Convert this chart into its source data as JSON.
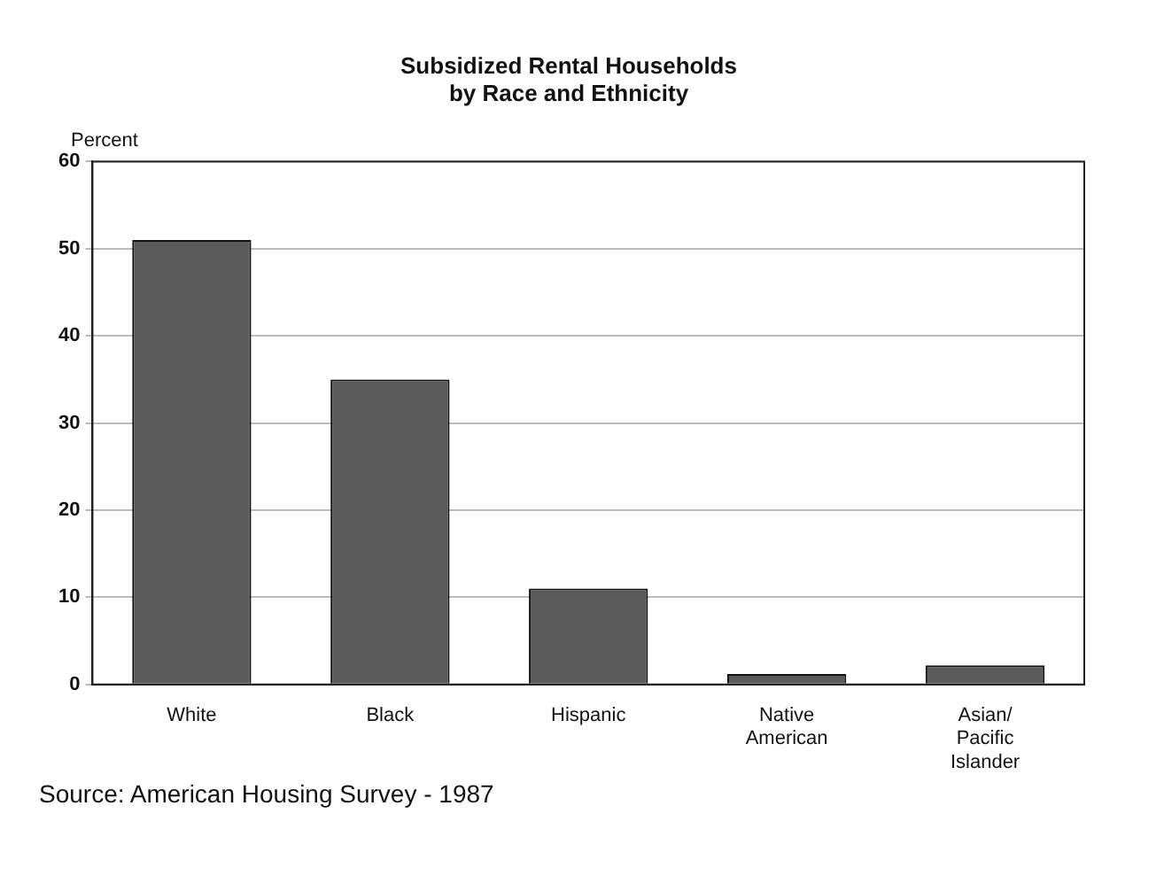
{
  "chart_data": {
    "type": "bar",
    "title": "Subsidized Rental Households\nby Race and Ethnicity",
    "ylabel": "Percent",
    "categories": [
      "White",
      "Black",
      "Hispanic",
      "Native American",
      "Asian/ Pacific Islander"
    ],
    "values": [
      51,
      35,
      11,
      1.2,
      2.2
    ],
    "color": "#5a5a5a",
    "ylim": [
      0,
      60
    ],
    "yticks": [
      0,
      10,
      20,
      30,
      40,
      50,
      60
    ],
    "grid": "y",
    "legend": false,
    "annotations": [
      "Source: American Housing Survey - 1987"
    ]
  }
}
